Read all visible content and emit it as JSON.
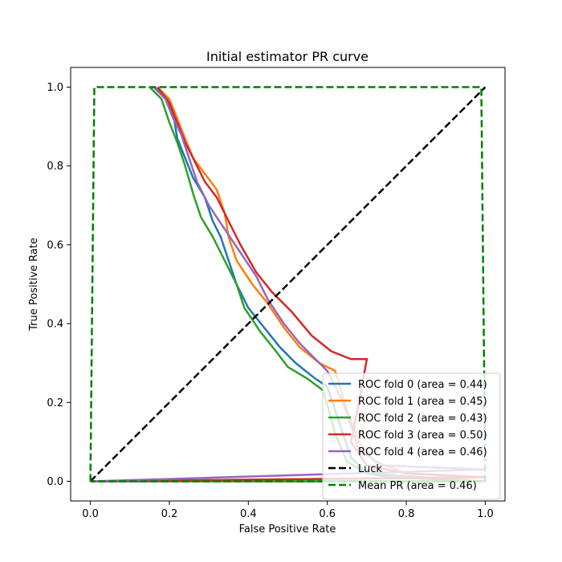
{
  "chart_data": {
    "type": "line",
    "title": "Initial estimator PR curve",
    "xlabel": "False Positive Rate",
    "ylabel": "True Positive Rate",
    "xlim": [
      -0.05,
      1.05
    ],
    "ylim": [
      -0.05,
      1.05
    ],
    "xticks": [
      0.0,
      0.2,
      0.4,
      0.6,
      0.8,
      1.0
    ],
    "yticks": [
      0.0,
      0.2,
      0.4,
      0.6,
      0.8,
      1.0
    ],
    "xtick_labels": [
      "0.0",
      "0.2",
      "0.4",
      "0.6",
      "0.8",
      "1.0"
    ],
    "ytick_labels": [
      "0.0",
      "0.2",
      "0.4",
      "0.6",
      "0.8",
      "1.0"
    ],
    "grid": false,
    "legend_position": "lower-right",
    "series": [
      {
        "name": "ROC fold 0 (area = 0.44)",
        "color": "#1f77b4",
        "dash": "solid",
        "points": [
          [
            0.16,
            1.0
          ],
          [
            0.19,
            0.98
          ],
          [
            0.21,
            0.93
          ],
          [
            0.22,
            0.87
          ],
          [
            0.24,
            0.82
          ],
          [
            0.26,
            0.77
          ],
          [
            0.29,
            0.72
          ],
          [
            0.31,
            0.66
          ],
          [
            0.33,
            0.62
          ],
          [
            0.35,
            0.56
          ],
          [
            0.37,
            0.5
          ],
          [
            0.4,
            0.44
          ],
          [
            0.44,
            0.39
          ],
          [
            0.48,
            0.34
          ],
          [
            0.52,
            0.3
          ],
          [
            0.57,
            0.26
          ],
          [
            0.6,
            0.24
          ],
          [
            0.63,
            0.15
          ],
          [
            0.66,
            0.06
          ],
          [
            0.7,
            0.02
          ],
          [
            0.76,
            0.01
          ],
          [
            1.0,
            0.0
          ],
          [
            0.0,
            0.0
          ]
        ]
      },
      {
        "name": "ROC fold 1 (area = 0.45)",
        "color": "#ff7f0e",
        "dash": "solid",
        "points": [
          [
            0.17,
            1.0
          ],
          [
            0.2,
            0.97
          ],
          [
            0.22,
            0.92
          ],
          [
            0.24,
            0.87
          ],
          [
            0.26,
            0.82
          ],
          [
            0.29,
            0.78
          ],
          [
            0.32,
            0.74
          ],
          [
            0.34,
            0.68
          ],
          [
            0.35,
            0.62
          ],
          [
            0.37,
            0.56
          ],
          [
            0.41,
            0.5
          ],
          [
            0.45,
            0.45
          ],
          [
            0.49,
            0.39
          ],
          [
            0.53,
            0.34
          ],
          [
            0.58,
            0.3
          ],
          [
            0.62,
            0.28
          ],
          [
            0.65,
            0.18
          ],
          [
            0.68,
            0.1
          ],
          [
            0.72,
            0.05
          ],
          [
            0.8,
            0.02
          ],
          [
            1.0,
            0.01
          ],
          [
            0.0,
            0.0
          ]
        ]
      },
      {
        "name": "ROC fold 2 (area = 0.43)",
        "color": "#2ca02c",
        "dash": "solid",
        "points": [
          [
            0.15,
            1.0
          ],
          [
            0.18,
            0.97
          ],
          [
            0.2,
            0.91
          ],
          [
            0.22,
            0.86
          ],
          [
            0.24,
            0.8
          ],
          [
            0.26,
            0.73
          ],
          [
            0.28,
            0.67
          ],
          [
            0.31,
            0.62
          ],
          [
            0.34,
            0.56
          ],
          [
            0.37,
            0.5
          ],
          [
            0.39,
            0.44
          ],
          [
            0.43,
            0.38
          ],
          [
            0.47,
            0.33
          ],
          [
            0.5,
            0.29
          ],
          [
            0.55,
            0.26
          ],
          [
            0.59,
            0.23
          ],
          [
            0.62,
            0.12
          ],
          [
            0.65,
            0.05
          ],
          [
            0.7,
            0.02
          ],
          [
            1.0,
            0.0
          ],
          [
            0.0,
            0.0
          ]
        ]
      },
      {
        "name": "ROC fold 3 (area = 0.50)",
        "color": "#d62728",
        "dash": "solid",
        "points": [
          [
            0.17,
            1.0
          ],
          [
            0.2,
            0.96
          ],
          [
            0.22,
            0.91
          ],
          [
            0.24,
            0.86
          ],
          [
            0.26,
            0.82
          ],
          [
            0.29,
            0.76
          ],
          [
            0.32,
            0.72
          ],
          [
            0.35,
            0.66
          ],
          [
            0.38,
            0.6
          ],
          [
            0.42,
            0.53
          ],
          [
            0.46,
            0.48
          ],
          [
            0.51,
            0.43
          ],
          [
            0.56,
            0.37
          ],
          [
            0.61,
            0.33
          ],
          [
            0.66,
            0.31
          ],
          [
            0.7,
            0.31
          ],
          [
            0.68,
            0.2
          ],
          [
            0.66,
            0.1
          ],
          [
            0.7,
            0.04
          ],
          [
            0.8,
            0.02
          ],
          [
            1.0,
            0.01
          ],
          [
            0.0,
            0.0
          ]
        ]
      },
      {
        "name": "ROC fold 4 (area = 0.46)",
        "color": "#9467bd",
        "dash": "solid",
        "points": [
          [
            0.16,
            1.0
          ],
          [
            0.19,
            0.97
          ],
          [
            0.21,
            0.92
          ],
          [
            0.23,
            0.88
          ],
          [
            0.25,
            0.82
          ],
          [
            0.27,
            0.76
          ],
          [
            0.3,
            0.7
          ],
          [
            0.34,
            0.64
          ],
          [
            0.38,
            0.58
          ],
          [
            0.42,
            0.52
          ],
          [
            0.45,
            0.46
          ],
          [
            0.49,
            0.4
          ],
          [
            0.53,
            0.35
          ],
          [
            0.57,
            0.31
          ],
          [
            0.6,
            0.28
          ],
          [
            0.64,
            0.2
          ],
          [
            0.68,
            0.08
          ],
          [
            0.74,
            0.04
          ],
          [
            1.0,
            0.03
          ],
          [
            0.0,
            0.0
          ]
        ]
      },
      {
        "name": "Luck",
        "color": "#000000",
        "dash": "dashed",
        "points": [
          [
            0.0,
            0.0
          ],
          [
            1.0,
            1.0
          ]
        ]
      },
      {
        "name": "Mean PR (area = 0.46)",
        "color": "#008000",
        "dash": "dashed",
        "points": [
          [
            0.0,
            0.0
          ],
          [
            0.01,
            1.0
          ],
          [
            0.16,
            1.0
          ],
          [
            0.99,
            1.0
          ],
          [
            1.0,
            0.0
          ],
          [
            0.0,
            0.0
          ]
        ]
      }
    ]
  }
}
